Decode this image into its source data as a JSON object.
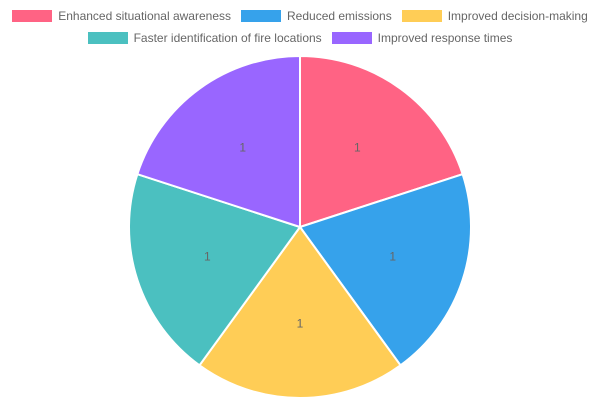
{
  "chart_data": {
    "type": "pie",
    "title": "",
    "categories": [
      "Enhanced situational awareness",
      "Reduced emissions",
      "Improved decision-making",
      "Faster identification of fire locations",
      "Improved response times"
    ],
    "values": [
      1,
      1,
      1,
      1,
      1
    ],
    "data_labels": [
      "1",
      "1",
      "1",
      "1",
      "1"
    ],
    "colors": [
      "#ff6384",
      "#36a2eb",
      "#ffcd56",
      "#4bc0c0",
      "#9966ff"
    ],
    "legend_position": "top"
  }
}
